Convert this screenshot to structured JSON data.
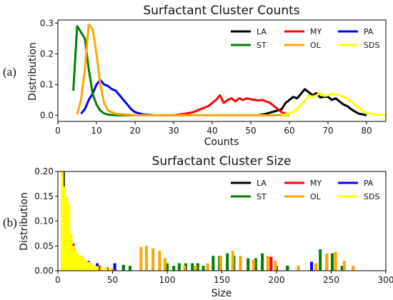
{
  "chart_data": [
    {
      "panel_label": "(a)",
      "type": "line",
      "title": "Surfactant Cluster Counts",
      "xlabel": "Counts",
      "ylabel": "Distribution",
      "xlim": [
        0,
        85
      ],
      "ylim": [
        -0.02,
        0.31
      ],
      "xticks": [
        "0",
        "10",
        "20",
        "30",
        "40",
        "50",
        "60",
        "70",
        "80"
      ],
      "yticks": [
        "0.0",
        "0.1",
        "0.2",
        "0.3"
      ],
      "legend_position": "top-right",
      "series": [
        {
          "name": "LA",
          "color": "#000000",
          "points": [
            [
              52,
              0.0
            ],
            [
              54,
              0.005
            ],
            [
              56,
              0.012
            ],
            [
              58,
              0.02
            ],
            [
              59,
              0.04
            ],
            [
              60,
              0.05
            ],
            [
              61,
              0.06
            ],
            [
              62,
              0.055
            ],
            [
              63,
              0.07
            ],
            [
              64,
              0.085
            ],
            [
              65,
              0.075
            ],
            [
              66,
              0.065
            ],
            [
              67,
              0.072
            ],
            [
              68,
              0.058
            ],
            [
              69,
              0.06
            ],
            [
              70,
              0.06
            ],
            [
              71,
              0.05
            ],
            [
              72,
              0.055
            ],
            [
              73,
              0.045
            ],
            [
              74,
              0.035
            ],
            [
              75,
              0.03
            ],
            [
              76,
              0.02
            ],
            [
              77,
              0.012
            ],
            [
              78,
              0.005
            ],
            [
              79,
              0.003
            ],
            [
              80,
              0.0
            ]
          ]
        },
        {
          "name": "MY",
          "color": "#ff0000",
          "points": [
            [
              26,
              0.0
            ],
            [
              30,
              0.0
            ],
            [
              33,
              0.005
            ],
            [
              35,
              0.01
            ],
            [
              37,
              0.02
            ],
            [
              39,
              0.03
            ],
            [
              40,
              0.04
            ],
            [
              41,
              0.05
            ],
            [
              42,
              0.065
            ],
            [
              43,
              0.04
            ],
            [
              44,
              0.05
            ],
            [
              45,
              0.055
            ],
            [
              46,
              0.045
            ],
            [
              47,
              0.055
            ],
            [
              48,
              0.05
            ],
            [
              49,
              0.055
            ],
            [
              50,
              0.052
            ],
            [
              51,
              0.05
            ],
            [
              52,
              0.048
            ],
            [
              53,
              0.05
            ],
            [
              54,
              0.045
            ],
            [
              55,
              0.04
            ],
            [
              56,
              0.03
            ],
            [
              57,
              0.02
            ],
            [
              58,
              0.01
            ],
            [
              59,
              0.005
            ],
            [
              60,
              0.0
            ]
          ]
        },
        {
          "name": "PA",
          "color": "#0000ff",
          "points": [
            [
              6,
              0.005
            ],
            [
              7,
              0.02
            ],
            [
              8,
              0.05
            ],
            [
              9,
              0.07
            ],
            [
              10,
              0.1
            ],
            [
              11,
              0.115
            ],
            [
              12,
              0.1
            ],
            [
              13,
              0.095
            ],
            [
              14,
              0.085
            ],
            [
              15,
              0.08
            ],
            [
              16,
              0.065
            ],
            [
              17,
              0.05
            ],
            [
              18,
              0.035
            ],
            [
              19,
              0.02
            ],
            [
              20,
              0.01
            ],
            [
              22,
              0.003
            ],
            [
              25,
              0.0
            ]
          ]
        },
        {
          "name": "ST",
          "color": "#008000",
          "points": [
            [
              4,
              0.08
            ],
            [
              5,
              0.29
            ],
            [
              6,
              0.27
            ],
            [
              7,
              0.25
            ],
            [
              8,
              0.15
            ],
            [
              9,
              0.07
            ],
            [
              10,
              0.035
            ],
            [
              11,
              0.015
            ],
            [
              12,
              0.006
            ],
            [
              13,
              0.002
            ],
            [
              15,
              0.0
            ],
            [
              20,
              0.0
            ]
          ]
        },
        {
          "name": "OL",
          "color": "#ffa500",
          "points": [
            [
              5,
              0.003
            ],
            [
              6,
              0.05
            ],
            [
              7,
              0.15
            ],
            [
              8,
              0.295
            ],
            [
              9,
              0.28
            ],
            [
              10,
              0.2
            ],
            [
              11,
              0.1
            ],
            [
              12,
              0.04
            ],
            [
              13,
              0.015
            ],
            [
              15,
              0.005
            ],
            [
              20,
              0.0
            ],
            [
              40,
              0.0
            ],
            [
              60,
              0.0
            ]
          ]
        },
        {
          "name": "SDS",
          "color": "#ffff00",
          "points": [
            [
              58,
              0.0
            ],
            [
              60,
              0.005
            ],
            [
              62,
              0.02
            ],
            [
              64,
              0.045
            ],
            [
              65,
              0.065
            ],
            [
              66,
              0.06
            ],
            [
              67,
              0.065
            ],
            [
              68,
              0.072
            ],
            [
              69,
              0.063
            ],
            [
              70,
              0.065
            ],
            [
              71,
              0.07
            ],
            [
              72,
              0.068
            ],
            [
              73,
              0.065
            ],
            [
              74,
              0.06
            ],
            [
              75,
              0.055
            ],
            [
              76,
              0.045
            ],
            [
              77,
              0.035
            ],
            [
              78,
              0.025
            ],
            [
              79,
              0.015
            ],
            [
              80,
              0.008
            ],
            [
              82,
              0.003
            ],
            [
              85,
              0.0
            ]
          ]
        }
      ]
    },
    {
      "panel_label": "(b)",
      "type": "bar",
      "title": "Surfactant Cluster Size",
      "xlabel": "Size",
      "ylabel": "Distribution",
      "xlim": [
        0,
        300
      ],
      "ylim": [
        0,
        0.2
      ],
      "xticks": [
        "0",
        "50",
        "100",
        "150",
        "200",
        "250",
        "300"
      ],
      "yticks": [
        "0.00",
        "0.05",
        "0.10",
        "0.15",
        "0.20"
      ],
      "legend_position": "top-right",
      "series": [
        {
          "name": "LA",
          "color": "#000000",
          "points": [
            [
              5,
              0.2
            ],
            [
              7,
              0.12
            ],
            [
              9,
              0.1
            ],
            [
              11,
              0.04
            ],
            [
              13,
              0.02
            ]
          ]
        },
        {
          "name": "MY",
          "color": "#ff0000",
          "points": [
            [
              14,
              0.055
            ],
            [
              17,
              0.03
            ],
            [
              20,
              0.025
            ],
            [
              25,
              0.02
            ],
            [
              30,
              0.015
            ],
            [
              38,
              0.01
            ],
            [
              45,
              0.007
            ],
            [
              195,
              0.028
            ]
          ]
        },
        {
          "name": "PA",
          "color": "#0000ff",
          "points": [
            [
              11,
              0.05
            ],
            [
              16,
              0.04
            ],
            [
              22,
              0.03
            ],
            [
              28,
              0.02
            ],
            [
              36,
              0.015
            ],
            [
              52,
              0.015
            ],
            [
              60,
              0.01
            ],
            [
              210,
              0.01
            ],
            [
              232,
              0.018
            ]
          ]
        },
        {
          "name": "ST",
          "color": "#008000",
          "points": [
            [
              18,
              0.015
            ],
            [
              60,
              0.012
            ],
            [
              66,
              0.01
            ],
            [
              100,
              0.015
            ],
            [
              106,
              0.01
            ],
            [
              111,
              0.015
            ],
            [
              117,
              0.015
            ],
            [
              123,
              0.015
            ],
            [
              128,
              0.015
            ],
            [
              133,
              0.01
            ],
            [
              142,
              0.03
            ],
            [
              148,
              0.03
            ],
            [
              155,
              0.035
            ],
            [
              161,
              0.03
            ],
            [
              174,
              0.025
            ],
            [
              181,
              0.025
            ],
            [
              187,
              0.035
            ],
            [
              200,
              0.01
            ],
            [
              210,
              0.01
            ],
            [
              240,
              0.043
            ],
            [
              246,
              0.03
            ],
            [
              251,
              0.035
            ],
            [
              260,
              0.01
            ]
          ]
        },
        {
          "name": "OL",
          "color": "#ffa500",
          "points": [
            [
              15,
              0.045
            ],
            [
              25,
              0.01
            ],
            [
              50,
              0.005
            ],
            [
              76,
              0.048
            ],
            [
              81,
              0.05
            ],
            [
              87,
              0.045
            ],
            [
              93,
              0.04
            ],
            [
              98,
              0.025
            ],
            [
              116,
              0.01
            ],
            [
              126,
              0.01
            ],
            [
              137,
              0.015
            ],
            [
              149,
              0.03
            ],
            [
              160,
              0.04
            ],
            [
              167,
              0.03
            ],
            [
              179,
              0.022
            ],
            [
              192,
              0.03
            ],
            [
              199,
              0.02
            ],
            [
              220,
              0.01
            ],
            [
              236,
              0.015
            ],
            [
              246,
              0.035
            ],
            [
              254,
              0.038
            ],
            [
              262,
              0.02
            ],
            [
              270,
              0.01
            ]
          ]
        },
        {
          "name": "SDS",
          "color": "#ffff00",
          "points": [
            [
              4,
              0.2
            ],
            [
              6,
              0.17
            ],
            [
              8,
              0.15
            ],
            [
              10,
              0.135
            ],
            [
              12,
              0.075
            ],
            [
              14,
              0.05
            ],
            [
              16,
              0.04
            ],
            [
              18,
              0.035
            ],
            [
              20,
              0.03
            ],
            [
              22,
              0.03
            ],
            [
              24,
              0.025
            ],
            [
              26,
              0.02
            ],
            [
              28,
              0.018
            ],
            [
              30,
              0.015
            ],
            [
              32,
              0.012
            ],
            [
              34,
              0.01
            ],
            [
              36,
              0.009
            ],
            [
              40,
              0.008
            ],
            [
              44,
              0.007
            ],
            [
              48,
              0.005
            ]
          ]
        }
      ]
    }
  ]
}
